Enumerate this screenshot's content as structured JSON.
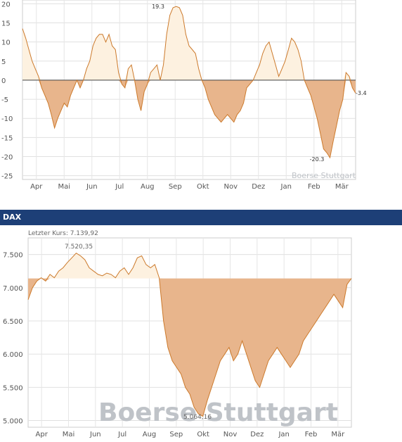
{
  "chart_data": [
    {
      "type": "area",
      "ylim": [
        -26,
        21
      ],
      "y_ticks": [
        "20",
        "15",
        "10",
        "5",
        "0",
        "-5",
        "-10",
        "-15",
        "-20",
        "-25"
      ],
      "months": [
        "Apr",
        "Mai",
        "Jun",
        "Jul",
        "Aug",
        "Sep",
        "Okt",
        "Nov",
        "Dez",
        "Jan",
        "Feb",
        "Mär"
      ],
      "annotations": {
        "max": "19.3",
        "min": "-20.3",
        "last": "-3.4"
      },
      "watermark": "Boerse Stuttgart",
      "baseline": 0,
      "series": [
        {
          "values": [
            13.5,
            11,
            8,
            5,
            3,
            1,
            -2,
            -4,
            -6,
            -9,
            -12.5,
            -10,
            -8,
            -6,
            -7,
            -4,
            -2,
            0,
            -2,
            0,
            3,
            5,
            9,
            11,
            12,
            12,
            10,
            12,
            9,
            8,
            2,
            -1,
            -2,
            3,
            4,
            0,
            -5,
            -8,
            -3,
            -1,
            2,
            3,
            4,
            0,
            4,
            12,
            17,
            19,
            19.3,
            19,
            17,
            12,
            9,
            8,
            7,
            3,
            0,
            -2,
            -5,
            -7,
            -9,
            -10,
            -11,
            -10,
            -9,
            -10,
            -11,
            -9,
            -8,
            -6,
            -2,
            -1,
            0,
            2,
            4,
            7,
            9,
            10,
            7,
            4,
            1,
            3,
            5,
            8,
            11,
            10,
            8,
            5,
            0,
            -2,
            -4,
            -7,
            -10,
            -14,
            -18,
            -19,
            -20.3,
            -16,
            -12,
            -8,
            -5,
            2,
            1,
            -2,
            -3.4
          ]
        }
      ],
      "colors": {
        "fill_pos": "#fdf1e0",
        "fill_neg": "#e8b58c",
        "line": "#cc7a2c"
      }
    },
    {
      "title": "DAX",
      "type": "area",
      "ylim": [
        4900,
        7750
      ],
      "y_ticks": [
        "7.500",
        "7.000",
        "6.500",
        "6.000",
        "5.500",
        "5.000"
      ],
      "months": [
        "Apr",
        "Mai",
        "Jun",
        "Jul",
        "Aug",
        "Sep",
        "Okt",
        "Nov",
        "Dez",
        "Jan",
        "Feb",
        "Mär"
      ],
      "last_price_label": "Letzter Kurs: 7.139,92",
      "annotations": {
        "max": "7.520,35",
        "min": "5.064,16"
      },
      "watermark": "Boerse Stuttgart",
      "baseline": 7139.92,
      "series": [
        {
          "values": [
            6820,
            7000,
            7100,
            7150,
            7100,
            7200,
            7150,
            7250,
            7300,
            7380,
            7450,
            7520,
            7480,
            7420,
            7300,
            7250,
            7200,
            7180,
            7220,
            7200,
            7150,
            7250,
            7300,
            7200,
            7300,
            7450,
            7480,
            7350,
            7300,
            7350,
            7150,
            6500,
            6100,
            5900,
            5800,
            5700,
            5500,
            5400,
            5200,
            5100,
            5064,
            5300,
            5500,
            5700,
            5900,
            6000,
            6100,
            5900,
            6000,
            6200,
            6000,
            5800,
            5600,
            5500,
            5700,
            5900,
            6000,
            6100,
            6000,
            5900,
            5800,
            5900,
            6000,
            6200,
            6300,
            6400,
            6500,
            6600,
            6700,
            6800,
            6900,
            6800,
            6700,
            7050,
            7139.92
          ]
        }
      ],
      "colors": {
        "fill_pos": "#fdf1e0",
        "fill_neg": "#e8b58c",
        "line": "#cc7a2c"
      }
    }
  ]
}
